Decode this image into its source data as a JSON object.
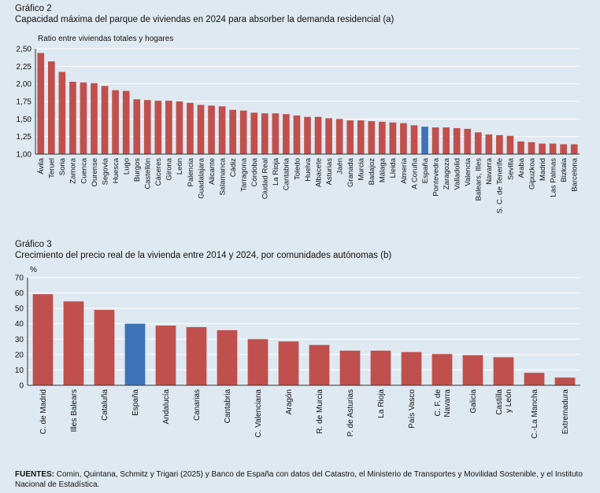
{
  "chart_data": [
    {
      "type": "bar",
      "label": "Gráfico 2",
      "title": "Capacidad máxima del parque de viviendas en 2024 para absorber la demanda residencial (a)",
      "ylabel": "Ratio entre viviendas totales y hogares",
      "ylim": [
        1.0,
        2.5
      ],
      "yticks": [
        "1,00",
        "1,25",
        "1,50",
        "1,75",
        "2,00",
        "2,25",
        "2,50"
      ],
      "highlight": "España",
      "categories": [
        "Ávila",
        "Teruel",
        "Soria",
        "Zamora",
        "Cuenca",
        "Ourense",
        "Segovia",
        "Huesca",
        "Lugo",
        "Burgos",
        "Castellón",
        "Cáceres",
        "Girona",
        "León",
        "Palencia",
        "Guadalajara",
        "Alicante",
        "Salamanca",
        "Cádiz",
        "Tarragona",
        "Córdoba",
        "Ciudad Real",
        "La Rioja",
        "Cantabria",
        "Toledo",
        "Huelva",
        "Albacete",
        "Asturias",
        "Jaén",
        "Granada",
        "Murcia",
        "Badajoz",
        "Málaga",
        "Lleida",
        "Almería",
        "A Coruña",
        "España",
        "Pontevedra",
        "Zaragoza",
        "Valladolid",
        "Valencia",
        "Balears, Illes",
        "Navarra",
        "S. C. de Tenerife",
        "Sevilla",
        "Araba",
        "Gipuzkoa",
        "Madrid",
        "Las Palmas",
        "Bizkaia",
        "Barcelona"
      ],
      "values": [
        2.44,
        2.32,
        2.17,
        2.03,
        2.02,
        2.01,
        1.97,
        1.91,
        1.9,
        1.78,
        1.77,
        1.76,
        1.76,
        1.75,
        1.73,
        1.7,
        1.69,
        1.68,
        1.63,
        1.62,
        1.59,
        1.58,
        1.58,
        1.57,
        1.55,
        1.53,
        1.53,
        1.51,
        1.5,
        1.48,
        1.48,
        1.47,
        1.46,
        1.45,
        1.44,
        1.41,
        1.39,
        1.38,
        1.38,
        1.37,
        1.36,
        1.31,
        1.28,
        1.27,
        1.26,
        1.18,
        1.17,
        1.15,
        1.15,
        1.14,
        1.14
      ],
      "grid": true,
      "legend": "none"
    },
    {
      "type": "bar",
      "label": "Gráfico 3",
      "title": "Crecimiento del precio real de la vivienda entre 2014 y 2024, por comunidades autónomas (b)",
      "ylabel": "%",
      "ylim": [
        0,
        70
      ],
      "yticks": [
        "0",
        "10",
        "20",
        "30",
        "40",
        "50",
        "60",
        "70"
      ],
      "highlight": "España",
      "categories": [
        "C. de Madrid",
        "Illes Balears",
        "Cataluña",
        "España",
        "Andalucía",
        "Canarias",
        "Cantabria",
        "C. Valenciana",
        "Aragón",
        "R. de Murcia",
        "P. de Asturias",
        "La Rioja",
        "País Vasco",
        "C. F. de Navarra",
        "Galicia",
        "Castilla y León",
        "C.-La Mancha",
        "Extremadura"
      ],
      "labels_split": [
        [
          "C. de Madrid"
        ],
        [
          "Illes Balears"
        ],
        [
          "Cataluña"
        ],
        [
          "España"
        ],
        [
          "Andalucía"
        ],
        [
          "Canarias"
        ],
        [
          "Cantabria"
        ],
        [
          "C. Valenciana"
        ],
        [
          "Aragón"
        ],
        [
          "R. de Murcia"
        ],
        [
          "P. de Asturias"
        ],
        [
          "La Rioja"
        ],
        [
          "País Vasco"
        ],
        [
          "C. F. de",
          "Navarra"
        ],
        [
          "Galicia"
        ],
        [
          "Castilla",
          "y León"
        ],
        [
          "C.-La Mancha"
        ],
        [
          "Extremadura"
        ]
      ],
      "values": [
        59.2,
        54.5,
        49.0,
        40.0,
        38.8,
        37.8,
        35.8,
        30.0,
        28.5,
        26.2,
        22.5,
        22.5,
        21.6,
        20.3,
        19.6,
        18.2,
        8.1,
        5.0
      ],
      "grid": true,
      "legend": "none"
    }
  ],
  "colors": {
    "bar": "#c0504d",
    "highlight": "#3f73b8",
    "grid": "#ffffff",
    "axis": "#333333"
  },
  "source": {
    "label": "FUENTES:",
    "text": " Comin, Quintana, Schmitz y Trigari (2025) y Banco de España con datos del Catastro, el Ministerio de Transportes y Movilidad Sostenible, y el Instituto Nacional de Estadística."
  }
}
